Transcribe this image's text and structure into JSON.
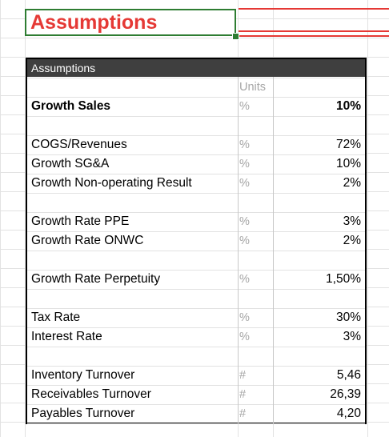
{
  "sheet": {
    "title": "Assumptions",
    "table_header": "Assumptions",
    "units_header": "Units"
  },
  "rows": [
    {
      "label": "Growth Sales",
      "unit": "%",
      "value": "10%",
      "bold": true
    },
    {
      "label": "COGS/Revenues",
      "unit": "%",
      "value": "72%"
    },
    {
      "label": "Growth SG&A",
      "unit": "%",
      "value": "10%"
    },
    {
      "label": "Growth Non-operating Result",
      "unit": "%",
      "value": "2%"
    },
    {
      "label": "Growth Rate PPE",
      "unit": "%",
      "value": "3%"
    },
    {
      "label": "Growth Rate ONWC",
      "unit": "%",
      "value": "2%"
    },
    {
      "label": "Growth Rate Perpetuity",
      "unit": "%",
      "value": "1,50%"
    },
    {
      "label": "Tax Rate",
      "unit": "%",
      "value": "30%"
    },
    {
      "label": "Interest Rate",
      "unit": "%",
      "value": "3%"
    },
    {
      "label": "Inventory Turnover",
      "unit": "#",
      "value": "5,46"
    },
    {
      "label": "Receivables Turnover",
      "unit": "#",
      "value": "26,39"
    },
    {
      "label": "Payables Turnover",
      "unit": "#",
      "value": "4,20"
    }
  ],
  "colors": {
    "title_text": "#e53935",
    "selection_border": "#2e7d32",
    "header_bg": "#3f3f3f"
  }
}
